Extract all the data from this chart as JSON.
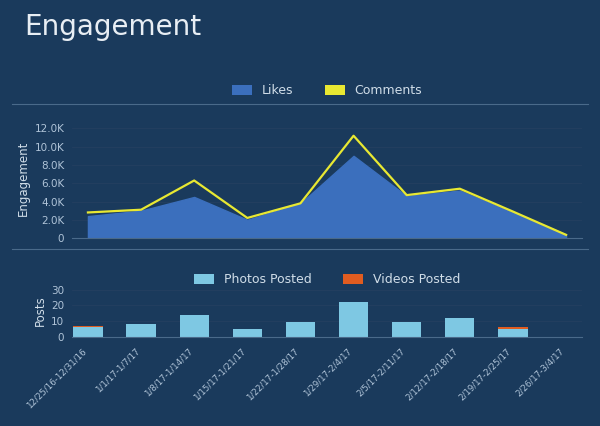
{
  "bg_color": "#1a3a5c",
  "title": "Engagement",
  "title_color": "#e8eef4",
  "title_fontsize": 20,
  "dates": [
    "12/25/16-12/31/16",
    "1/1/17-1/7/17",
    "1/8/17-1/14/17",
    "1/15/17-1/21/17",
    "1/22/17-1/28/17",
    "1/29/17-2/4/17",
    "2/5/17-2/11/17",
    "2/12/17-2/18/17",
    "2/19/17-2/25/17",
    "2/26/17-3/4/17"
  ],
  "likes": [
    2400,
    3000,
    4500,
    2000,
    3800,
    9000,
    4600,
    5200,
    2800,
    400
  ],
  "comments": [
    2800,
    3100,
    6300,
    2200,
    3800,
    11200,
    4700,
    5400,
    2900,
    350
  ],
  "likes_color": "#3b6fbd",
  "comments_color": "#e8e832",
  "engagement_ylabel": "Engagement",
  "engagement_yticks": [
    0,
    2000,
    4000,
    6000,
    8000,
    10000,
    12000
  ],
  "engagement_yticklabels": [
    "0",
    "2.0K",
    "4.0K",
    "6.0K",
    "8.0K",
    "10.0K",
    "12.0K"
  ],
  "photos": [
    6,
    8,
    14,
    5,
    9,
    22,
    9,
    12,
    5,
    0
  ],
  "videos": [
    1,
    0,
    0,
    0,
    0,
    0,
    0,
    0,
    1,
    0
  ],
  "photos_color": "#7ec8e3",
  "videos_color": "#e05c20",
  "posts_ylabel": "Posts",
  "posts_yticks": [
    0,
    10,
    20,
    30
  ],
  "posts_yticklabels": [
    "0",
    "10",
    "20",
    "30"
  ],
  "legend1_labels": [
    "Likes",
    "Comments"
  ],
  "legend2_labels": [
    "Photos Posted",
    "Videos Posted"
  ],
  "axis_color": "#d0dde8",
  "tick_color": "#b0c4d8",
  "grid_color": "#243f60",
  "spine_color": "#4a6a8a"
}
